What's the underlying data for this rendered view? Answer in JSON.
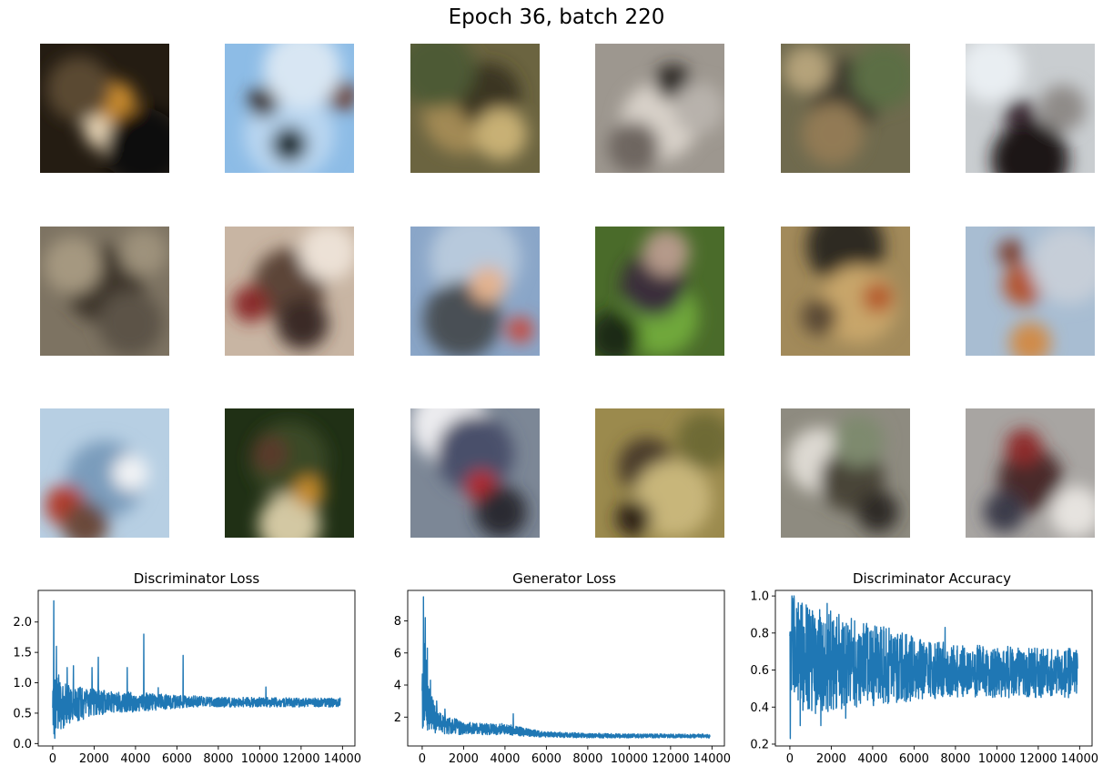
{
  "suptitle": "Epoch 36, batch 220",
  "samples": [
    {
      "bg": "#241c12",
      "blobs": [
        [
          "#e9d7b8",
          0.55,
          0.62,
          0.22
        ],
        [
          "#c98b2e",
          0.58,
          0.45,
          0.16
        ],
        [
          "#5a4a33",
          0.3,
          0.35,
          0.25
        ],
        [
          "#0d0b08",
          0.8,
          0.8,
          0.3
        ]
      ]
    },
    {
      "bg": "#8dbce6",
      "blobs": [
        [
          "#b9d6f0",
          0.5,
          0.7,
          0.35
        ],
        [
          "#3b2f2a",
          0.3,
          0.45,
          0.12
        ],
        [
          "#6b3a2a",
          0.9,
          0.4,
          0.12
        ],
        [
          "#1e2a2e",
          0.5,
          0.78,
          0.14
        ],
        [
          "#d8e6f3",
          0.6,
          0.2,
          0.3
        ]
      ]
    },
    {
      "bg": "#6b6440",
      "blobs": [
        [
          "#a38a55",
          0.4,
          0.55,
          0.3
        ],
        [
          "#3a3424",
          0.6,
          0.4,
          0.25
        ],
        [
          "#c8b074",
          0.7,
          0.7,
          0.2
        ],
        [
          "#4d5a35",
          0.2,
          0.2,
          0.3
        ]
      ]
    },
    {
      "bg": "#9d978f",
      "blobs": [
        [
          "#d8d1c9",
          0.5,
          0.6,
          0.3
        ],
        [
          "#2c2623",
          0.6,
          0.3,
          0.14
        ],
        [
          "#6e6660",
          0.3,
          0.8,
          0.2
        ],
        [
          "#b8b2ac",
          0.8,
          0.5,
          0.2
        ]
      ]
    },
    {
      "bg": "#6f6a4e",
      "blobs": [
        [
          "#3d3a2e",
          0.5,
          0.4,
          0.28
        ],
        [
          "#927a54",
          0.4,
          0.7,
          0.24
        ],
        [
          "#5c6e45",
          0.8,
          0.25,
          0.25
        ],
        [
          "#b5a37a",
          0.2,
          0.2,
          0.18
        ]
      ]
    },
    {
      "bg": "#c9cdd0",
      "blobs": [
        [
          "#3c2a36",
          0.42,
          0.55,
          0.12
        ],
        [
          "#1a1518",
          0.5,
          0.9,
          0.3
        ],
        [
          "#e9eef2",
          0.2,
          0.2,
          0.25
        ],
        [
          "#8f8b88",
          0.75,
          0.5,
          0.18
        ]
      ]
    },
    {
      "bg": "#7d7362",
      "blobs": [
        [
          "#3c3429",
          0.5,
          0.45,
          0.3
        ],
        [
          "#a59880",
          0.25,
          0.3,
          0.22
        ],
        [
          "#5b5346",
          0.7,
          0.75,
          0.25
        ],
        [
          "#9e927c",
          0.8,
          0.2,
          0.18
        ]
      ]
    },
    {
      "bg": "#c8b5a3",
      "blobs": [
        [
          "#5c4438",
          0.5,
          0.45,
          0.28
        ],
        [
          "#8a2a2a",
          0.2,
          0.6,
          0.14
        ],
        [
          "#ece1d6",
          0.8,
          0.2,
          0.22
        ],
        [
          "#3b2c27",
          0.6,
          0.75,
          0.2
        ]
      ]
    },
    {
      "bg": "#8aa6c8",
      "blobs": [
        [
          "#b7c9dc",
          0.5,
          0.25,
          0.35
        ],
        [
          "#4a4f55",
          0.4,
          0.72,
          0.3
        ],
        [
          "#e3b28e",
          0.6,
          0.45,
          0.14
        ],
        [
          "#c7463a",
          0.85,
          0.8,
          0.1
        ]
      ]
    },
    {
      "bg": "#4a6b2a",
      "blobs": [
        [
          "#6fa83a",
          0.5,
          0.7,
          0.3
        ],
        [
          "#3a2f3a",
          0.45,
          0.45,
          0.25
        ],
        [
          "#b59a8a",
          0.55,
          0.2,
          0.18
        ],
        [
          "#1e2a15",
          0.15,
          0.85,
          0.2
        ]
      ]
    },
    {
      "bg": "#a28a5a",
      "blobs": [
        [
          "#2e2a22",
          0.5,
          0.15,
          0.3
        ],
        [
          "#c8a66a",
          0.6,
          0.6,
          0.3
        ],
        [
          "#b55a2a",
          0.75,
          0.55,
          0.12
        ],
        [
          "#5a4a34",
          0.3,
          0.7,
          0.14
        ]
      ]
    },
    {
      "bg": "#a8bdd2",
      "blobs": [
        [
          "#b3532f",
          0.45,
          0.45,
          0.16
        ],
        [
          "#c6ced8",
          0.8,
          0.3,
          0.3
        ],
        [
          "#d08b4a",
          0.5,
          0.9,
          0.16
        ],
        [
          "#7a3a2a",
          0.35,
          0.2,
          0.1
        ]
      ]
    },
    {
      "bg": "#b7cfe3",
      "blobs": [
        [
          "#7a9cbc",
          0.5,
          0.55,
          0.3
        ],
        [
          "#b23a2a",
          0.2,
          0.75,
          0.16
        ],
        [
          "#f1f3f5",
          0.7,
          0.5,
          0.14
        ],
        [
          "#6b4a3a",
          0.35,
          0.9,
          0.18
        ]
      ]
    },
    {
      "bg": "#203015",
      "blobs": [
        [
          "#3a4a26",
          0.5,
          0.4,
          0.3
        ],
        [
          "#d3c8a3",
          0.5,
          0.9,
          0.24
        ],
        [
          "#c48a2a",
          0.65,
          0.65,
          0.12
        ],
        [
          "#5a3a2a",
          0.35,
          0.35,
          0.14
        ]
      ]
    },
    {
      "bg": "#7c8796",
      "blobs": [
        [
          "#ececef",
          0.3,
          0.12,
          0.3
        ],
        [
          "#4a4f6a",
          0.5,
          0.35,
          0.3
        ],
        [
          "#b5282a",
          0.55,
          0.6,
          0.12
        ],
        [
          "#2a2a30",
          0.7,
          0.8,
          0.2
        ]
      ]
    },
    {
      "bg": "#9b8a4d",
      "blobs": [
        [
          "#4a3a2a",
          0.4,
          0.45,
          0.22
        ],
        [
          "#c8b67a",
          0.6,
          0.7,
          0.3
        ],
        [
          "#6e6a36",
          0.85,
          0.25,
          0.22
        ],
        [
          "#2e2418",
          0.3,
          0.85,
          0.14
        ]
      ]
    },
    {
      "bg": "#8e8b80",
      "blobs": [
        [
          "#ddd9d2",
          0.3,
          0.4,
          0.25
        ],
        [
          "#4a4438",
          0.55,
          0.55,
          0.25
        ],
        [
          "#7e8a6e",
          0.6,
          0.25,
          0.2
        ],
        [
          "#2f2a25",
          0.75,
          0.8,
          0.16
        ]
      ]
    },
    {
      "bg": "#a8a5a2",
      "blobs": [
        [
          "#4a2a2a",
          0.5,
          0.55,
          0.25
        ],
        [
          "#8e2a2a",
          0.45,
          0.3,
          0.14
        ],
        [
          "#e6e3df",
          0.85,
          0.8,
          0.2
        ],
        [
          "#3a3a4a",
          0.3,
          0.8,
          0.16
        ]
      ]
    }
  ],
  "chart_data": [
    {
      "type": "line",
      "title": "Discriminator Loss",
      "xlim": [
        -700,
        14600
      ],
      "ylim": [
        -0.04,
        2.52
      ],
      "xticks": [
        0,
        2000,
        4000,
        6000,
        8000,
        10000,
        12000,
        14000
      ],
      "yticks": [
        0.0,
        0.5,
        1.0,
        1.5,
        2.0
      ],
      "ytick_labels": [
        "0.0",
        "0.5",
        "1.0",
        "1.5",
        "2.0"
      ],
      "grid": false,
      "color": "#1f77b4",
      "n_points": 13900,
      "envelope_x": [
        0,
        200,
        500,
        1000,
        2000,
        3000,
        4000,
        5000,
        6000,
        7000,
        8000,
        10000,
        12000,
        13900
      ],
      "envelope_low": [
        0.05,
        0.1,
        0.25,
        0.35,
        0.45,
        0.5,
        0.52,
        0.55,
        0.58,
        0.6,
        0.6,
        0.6,
        0.6,
        0.6
      ],
      "envelope_high": [
        0.9,
        1.2,
        1.0,
        0.95,
        0.9,
        0.85,
        0.85,
        0.82,
        0.8,
        0.78,
        0.76,
        0.76,
        0.75,
        0.75
      ],
      "spikes": [
        [
          50,
          2.35
        ],
        [
          180,
          1.6
        ],
        [
          350,
          1.0
        ],
        [
          700,
          1.25
        ],
        [
          1000,
          1.28
        ],
        [
          1900,
          1.25
        ],
        [
          2200,
          1.42
        ],
        [
          3600,
          1.25
        ],
        [
          4400,
          1.8
        ],
        [
          5100,
          0.92
        ],
        [
          6300,
          1.45
        ],
        [
          10300,
          0.93
        ]
      ]
    },
    {
      "type": "line",
      "title": "Generator Loss",
      "xlim": [
        -700,
        14600
      ],
      "ylim": [
        0.2,
        9.9
      ],
      "xticks": [
        0,
        2000,
        4000,
        6000,
        8000,
        10000,
        12000,
        14000
      ],
      "yticks": [
        2,
        4,
        6,
        8
      ],
      "ytick_labels": [
        "2",
        "4",
        "6",
        "8"
      ],
      "grid": false,
      "color": "#1f77b4",
      "n_points": 13900,
      "envelope_x": [
        0,
        100,
        300,
        600,
        1000,
        2000,
        3000,
        4000,
        5000,
        6000,
        8000,
        10000,
        12000,
        13900
      ],
      "envelope_low": [
        0.6,
        1.2,
        1.1,
        1.0,
        0.95,
        0.9,
        0.9,
        0.9,
        0.8,
        0.75,
        0.7,
        0.7,
        0.7,
        0.7
      ],
      "envelope_high": [
        5.5,
        7.5,
        4.0,
        2.8,
        2.2,
        1.7,
        1.6,
        1.6,
        1.3,
        1.1,
        1.0,
        0.95,
        0.95,
        0.95
      ],
      "spikes": [
        [
          60,
          9.5
        ],
        [
          150,
          8.2
        ],
        [
          250,
          6.3
        ],
        [
          400,
          4.3
        ],
        [
          700,
          3.0
        ],
        [
          1100,
          2.5
        ],
        [
          4400,
          2.2
        ]
      ]
    },
    {
      "type": "line",
      "title": "Discriminator Accuracy",
      "xlim": [
        -700,
        14600
      ],
      "ylim": [
        0.19,
        1.03
      ],
      "xticks": [
        0,
        2000,
        4000,
        6000,
        8000,
        10000,
        12000,
        14000
      ],
      "yticks": [
        0.2,
        0.4,
        0.6,
        0.8,
        1.0
      ],
      "ytick_labels": [
        "0.2",
        "0.4",
        "0.6",
        "0.8",
        "1.0"
      ],
      "grid": false,
      "color": "#1f77b4",
      "n_points": 13900,
      "envelope_x": [
        0,
        300,
        1000,
        2000,
        3000,
        4000,
        5000,
        6000,
        7000,
        8000,
        10000,
        12000,
        13900
      ],
      "envelope_low": [
        0.45,
        0.4,
        0.35,
        0.38,
        0.4,
        0.4,
        0.42,
        0.43,
        0.44,
        0.45,
        0.45,
        0.45,
        0.45
      ],
      "envelope_high": [
        1.0,
        0.98,
        0.95,
        0.92,
        0.88,
        0.85,
        0.82,
        0.78,
        0.76,
        0.74,
        0.73,
        0.72,
        0.72
      ],
      "spikes": [
        [
          20,
          0.23
        ],
        [
          100,
          1.0
        ],
        [
          200,
          1.0
        ],
        [
          500,
          0.3
        ],
        [
          1500,
          0.3
        ],
        [
          1800,
          0.96
        ],
        [
          2700,
          0.34
        ],
        [
          7500,
          0.83
        ]
      ]
    }
  ]
}
